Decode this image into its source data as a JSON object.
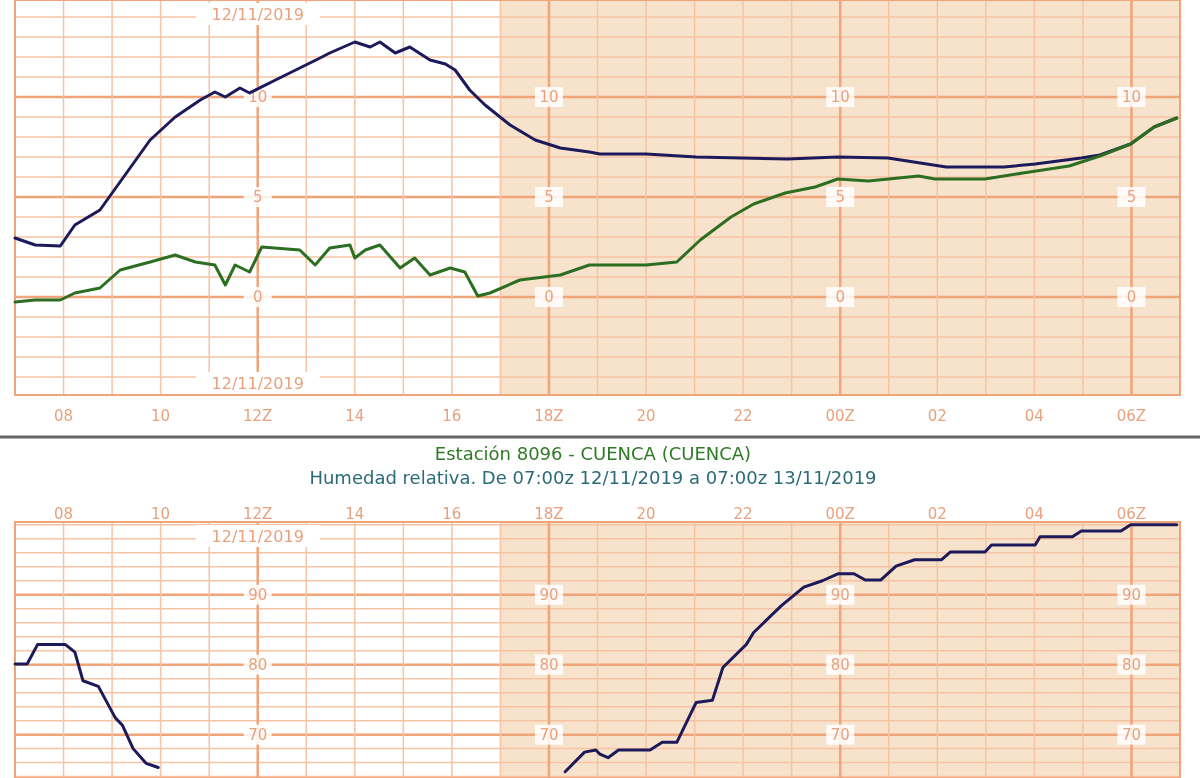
{
  "chart_data": [
    {
      "type": "line",
      "xlim": [
        "2019-11-12T07:00",
        "2019-11-13T07:00"
      ],
      "ylim": [
        -4.9,
        14.85
      ],
      "xticks": [
        {
          "value": "2019-11-12T08:00",
          "label": "08"
        },
        {
          "value": "2019-11-12T10:00",
          "label": "10"
        },
        {
          "value": "2019-11-12T12:00",
          "label": "12Z"
        },
        {
          "value": "2019-11-12T14:00",
          "label": "14"
        },
        {
          "value": "2019-11-12T16:00",
          "label": "16"
        },
        {
          "value": "2019-11-12T18:00",
          "label": "18Z"
        },
        {
          "value": "2019-11-12T20:00",
          "label": "20"
        },
        {
          "value": "2019-11-12T22:00",
          "label": "22"
        },
        {
          "value": "2019-11-13T00:00",
          "label": "00Z"
        },
        {
          "value": "2019-11-13T02:00",
          "label": "02"
        },
        {
          "value": "2019-11-13T04:00",
          "label": "04"
        },
        {
          "value": "2019-11-13T06:00",
          "label": "06Z"
        }
      ],
      "yticks": [
        0,
        5,
        10
      ],
      "grid": true,
      "bands": [
        {
          "axis": "x",
          "from": "2019-11-12T17:00",
          "to": "2019-11-13T07:00",
          "color": "#f7e3cc"
        }
      ],
      "annotations": [
        "12/11/2019",
        "12/11/2019",
        {
          "text": "10",
          "x": "2019-11-12T12:00",
          "y": 10
        },
        {
          "text": "5",
          "x": "2019-11-12T12:00",
          "y": 5
        },
        {
          "text": "0",
          "x": "2019-11-12T12:00",
          "y": 0
        },
        {
          "text": "10",
          "x": "2019-11-12T18:00",
          "y": 10
        },
        {
          "text": "5",
          "x": "2019-11-12T18:00",
          "y": 5
        },
        {
          "text": "0",
          "x": "2019-11-12T18:00",
          "y": 0
        },
        {
          "text": "10",
          "x": "2019-11-13T00:00",
          "y": 10
        },
        {
          "text": "5",
          "x": "2019-11-13T00:00",
          "y": 5
        },
        {
          "text": "0",
          "x": "2019-11-13T00:00",
          "y": 0
        }
      ],
      "series": [
        {
          "color": "#1c1a5a",
          "x": [
            "2019-11-12T07:00",
            "2019-11-12T07:25",
            "2019-11-12T07:56",
            "2019-11-12T08:14",
            "2019-11-12T08:45",
            "2019-11-12T09:16",
            "2019-11-12T09:47",
            "2019-11-12T10:18",
            "2019-11-12T10:49",
            "2019-11-12T11:07",
            "2019-11-12T11:20",
            "2019-11-12T11:38",
            "2019-11-12T11:50",
            "2019-11-12T12:22",
            "2019-11-12T12:52",
            "2019-11-12T13:17",
            "2019-11-12T13:29",
            "2019-11-12T14:00",
            "2019-11-12T14:19",
            "2019-11-12T14:31",
            "2019-11-12T14:50",
            "2019-11-12T15:08",
            "2019-11-12T15:33",
            "2019-11-12T15:52",
            "2019-11-12T16:04",
            "2019-11-12T16:22",
            "2019-11-12T16:41",
            "2019-11-12T17:12",
            "2019-11-12T17:43",
            "2019-11-12T18:14",
            "2019-11-12T18:50",
            "2019-11-12T19:03",
            "2019-11-12T20:00",
            "2019-11-12T21:02",
            "2019-11-12T22:55",
            "2019-11-12T23:57",
            "2019-11-13T00:59",
            "2019-11-13T02:11",
            "2019-11-13T03:22",
            "2019-11-13T04:01",
            "2019-11-13T04:58",
            "2019-11-13T05:21",
            "2019-11-13T05:59",
            "2019-11-13T06:28",
            "2019-11-13T06:56"
          ],
          "values": [
            2.95,
            2.6,
            2.55,
            3.6,
            4.35,
            6.1,
            7.85,
            9.0,
            9.85,
            10.25,
            10.0,
            10.45,
            10.2,
            10.85,
            11.45,
            11.95,
            12.2,
            12.75,
            12.5,
            12.75,
            12.2,
            12.5,
            11.85,
            11.65,
            11.35,
            10.35,
            9.6,
            8.6,
            7.85,
            7.45,
            7.25,
            7.15,
            7.15,
            7.0,
            6.9,
            7.0,
            6.95,
            6.5,
            6.5,
            6.65,
            6.95,
            7.1,
            7.65,
            8.5,
            8.95
          ]
        },
        {
          "color": "#2c6e22",
          "x": [
            "2019-11-12T07:00",
            "2019-11-12T07:25",
            "2019-11-12T07:56",
            "2019-11-12T08:14",
            "2019-11-12T08:45",
            "2019-11-12T09:10",
            "2019-11-12T09:47",
            "2019-11-12T10:18",
            "2019-11-12T10:43",
            "2019-11-12T11:07",
            "2019-11-12T11:20",
            "2019-11-12T11:32",
            "2019-11-12T11:50",
            "2019-11-12T12:05",
            "2019-11-12T12:52",
            "2019-11-12T13:11",
            "2019-11-12T13:29",
            "2019-11-12T13:54",
            "2019-11-12T14:00",
            "2019-11-12T14:13",
            "2019-11-12T14:31",
            "2019-11-12T14:56",
            "2019-11-12T15:14",
            "2019-11-12T15:33",
            "2019-11-12T15:58",
            "2019-11-12T16:16",
            "2019-11-12T16:32",
            "2019-11-12T16:47",
            "2019-11-12T17:24",
            "2019-11-12T18:14",
            "2019-11-12T18:50",
            "2019-11-12T20:00",
            "2019-11-12T20:38",
            "2019-11-12T21:07",
            "2019-11-12T21:45",
            "2019-11-12T22:13",
            "2019-11-12T22:52",
            "2019-11-12T23:29",
            "2019-11-12T23:57",
            "2019-11-13T00:35",
            "2019-11-13T01:37",
            "2019-11-13T01:57",
            "2019-11-13T02:59",
            "2019-11-13T03:46",
            "2019-11-13T04:43",
            "2019-11-13T05:21",
            "2019-11-13T05:59",
            "2019-11-13T06:28",
            "2019-11-13T06:56"
          ],
          "values": [
            -0.25,
            -0.15,
            -0.15,
            0.2,
            0.45,
            1.35,
            1.75,
            2.1,
            1.75,
            1.6,
            0.6,
            1.6,
            1.25,
            2.5,
            2.35,
            1.6,
            2.45,
            2.6,
            1.95,
            2.35,
            2.6,
            1.45,
            1.95,
            1.1,
            1.45,
            1.25,
            0.05,
            0.2,
            0.85,
            1.1,
            1.6,
            1.6,
            1.75,
            2.85,
            4.0,
            4.65,
            5.2,
            5.5,
            5.9,
            5.8,
            6.05,
            5.9,
            5.9,
            6.2,
            6.55,
            7.05,
            7.65,
            8.5,
            8.95
          ]
        }
      ]
    },
    {
      "type": "line",
      "title": "Estación 8096 - CUENCA (CUENCA)",
      "subtitle": "Humedad relativa. De 07:00z 12/11/2019 a 07:00z 13/11/2019",
      "xlim": [
        "2019-11-12T07:00",
        "2019-11-13T07:00"
      ],
      "ylim": [
        63.8,
        100.4
      ],
      "xticks": [
        {
          "value": "2019-11-12T08:00",
          "label": "08"
        },
        {
          "value": "2019-11-12T10:00",
          "label": "10"
        },
        {
          "value": "2019-11-12T12:00",
          "label": "12Z"
        },
        {
          "value": "2019-11-12T14:00",
          "label": "14"
        },
        {
          "value": "2019-11-12T16:00",
          "label": "16"
        },
        {
          "value": "2019-11-12T18:00",
          "label": "18Z"
        },
        {
          "value": "2019-11-12T20:00",
          "label": "20"
        },
        {
          "value": "2019-11-12T22:00",
          "label": "22"
        },
        {
          "value": "2019-11-13T00:00",
          "label": "00Z"
        },
        {
          "value": "2019-11-13T02:00",
          "label": "02"
        },
        {
          "value": "2019-11-13T04:00",
          "label": "04"
        },
        {
          "value": "2019-11-13T06:00",
          "label": "06Z"
        }
      ],
      "yticks": [
        70,
        80,
        90
      ],
      "grid": true,
      "bands": [
        {
          "axis": "x",
          "from": "2019-11-12T17:00",
          "to": "2019-11-13T07:00",
          "color": "#f7e3cc"
        }
      ],
      "annotations": [
        "12/11/2019",
        {
          "text": "90",
          "x": "2019-11-12T12:00",
          "y": 90
        },
        {
          "text": "80",
          "x": "2019-11-12T12:00",
          "y": 80
        },
        {
          "text": "70",
          "x": "2019-11-12T12:00",
          "y": 70
        },
        {
          "text": "90",
          "x": "2019-11-12T18:00",
          "y": 90
        },
        {
          "text": "80",
          "x": "2019-11-12T18:00",
          "y": 80
        },
        {
          "text": "70",
          "x": "2019-11-12T18:00",
          "y": 70
        },
        {
          "text": "90",
          "x": "2019-11-13T00:00",
          "y": 90
        },
        {
          "text": "80",
          "x": "2019-11-13T00:00",
          "y": 80
        },
        {
          "text": "70",
          "x": "2019-11-13T00:00",
          "y": 70
        }
      ],
      "series": [
        {
          "color": "#1c1a5a",
          "x": [
            "2019-11-12T07:00",
            "2019-11-12T07:15",
            "2019-11-12T07:28",
            "2019-11-12T08:02",
            "2019-11-12T08:14",
            "2019-11-12T08:24",
            "2019-11-12T08:43",
            "2019-11-12T09:04",
            "2019-11-12T09:13",
            "2019-11-12T09:26",
            "2019-11-12T09:42",
            "2019-11-12T09:57",
            "2019-11-12T10:10",
            "2019-11-12T14:00",
            "2019-11-12T18:06",
            "2019-11-12T18:20",
            "2019-11-12T18:44",
            "2019-11-12T18:58",
            "2019-11-12T19:03",
            "2019-11-12T19:13",
            "2019-11-12T19:26",
            "2019-11-12T20:05",
            "2019-11-12T20:20",
            "2019-11-12T20:38",
            "2019-11-12T21:02",
            "2019-11-12T21:22",
            "2019-11-12T21:35",
            "2019-11-12T22:04",
            "2019-11-12T22:13",
            "2019-11-12T22:47",
            "2019-11-12T23:15",
            "2019-11-12T23:38",
            "2019-11-12T23:57",
            "2019-11-13T00:17",
            "2019-11-13T00:31",
            "2019-11-13T00:50",
            "2019-11-13T01:09",
            "2019-11-13T01:32",
            "2019-11-13T02:05",
            "2019-11-13T02:16",
            "2019-11-13T02:59",
            "2019-11-13T03:07",
            "2019-11-13T04:01",
            "2019-11-13T04:07",
            "2019-11-13T04:47",
            "2019-11-13T04:58",
            "2019-11-13T05:47",
            "2019-11-13T05:59",
            "2019-11-13T06:56"
          ],
          "values": [
            80.1,
            80.1,
            82.9,
            82.9,
            81.8,
            77.7,
            76.9,
            72.4,
            71.3,
            68.0,
            65.9,
            65.3,
            null,
            null,
            null,
            64.7,
            67.5,
            67.8,
            67.2,
            66.7,
            67.8,
            67.8,
            68.9,
            68.9,
            74.6,
            74.9,
            79.6,
            82.9,
            84.6,
            88.4,
            91.1,
            92.0,
            93.0,
            93.0,
            92.1,
            92.1,
            94.1,
            95.0,
            95.0,
            96.1,
            96.1,
            97.1,
            97.1,
            98.3,
            98.3,
            99.1,
            99.1,
            100.0,
            100.0
          ]
        }
      ]
    }
  ]
}
